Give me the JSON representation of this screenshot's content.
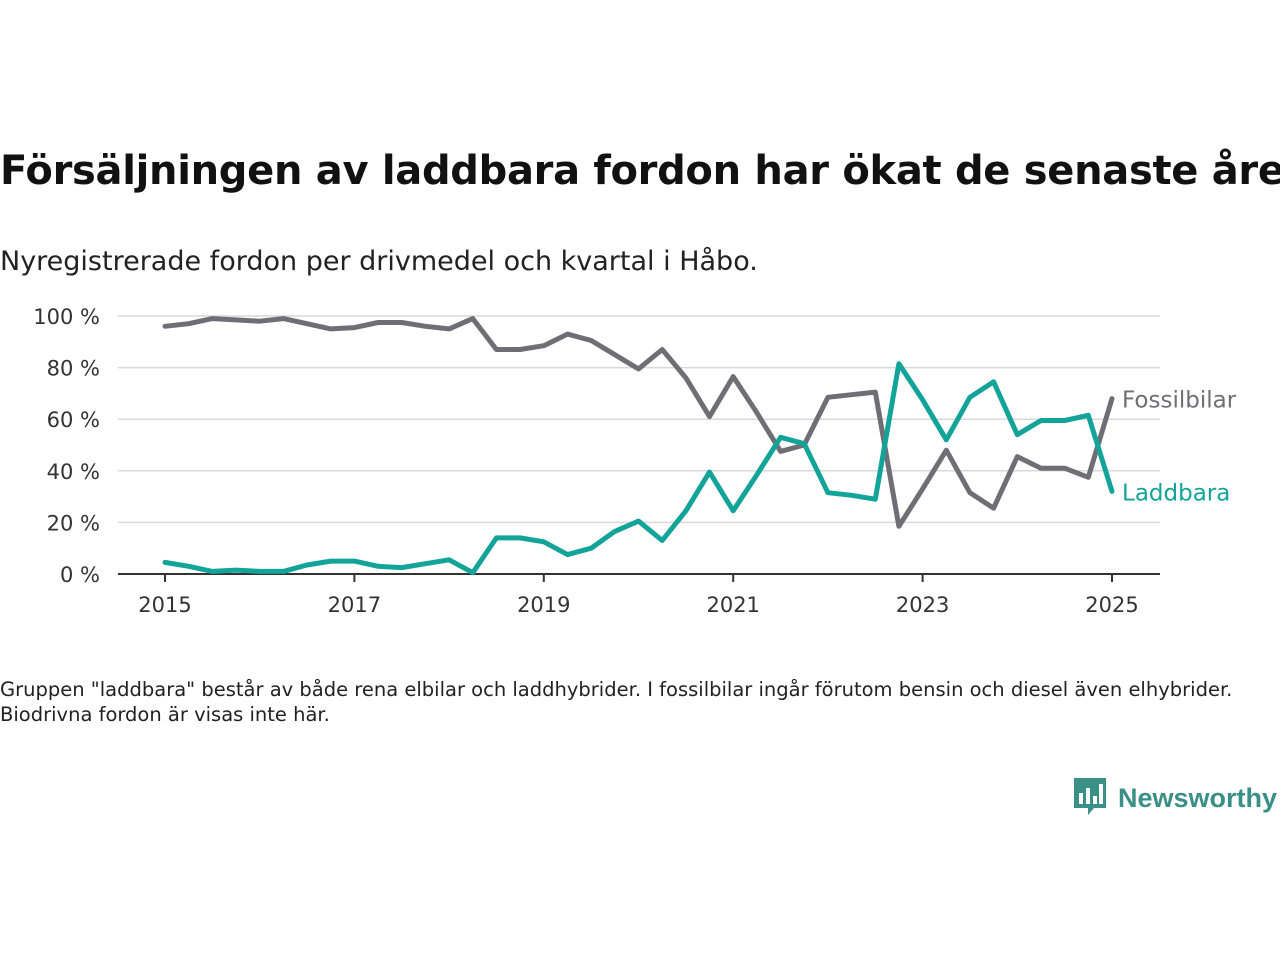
{
  "title": "Försäljningen av laddbara fordon har ökat de senaste åren",
  "subtitle": "Nyregistrerade fordon per drivmedel och kvartal i Håbo.",
  "note": "Gruppen \"laddbara\" består av både rena elbilar och laddhybrider. I fossilbilar ingår förutom bensin och diesel även elhybrider. Biodrivna fordon är visas inte här.",
  "brand": {
    "name": "Newsworthy",
    "icon": "newsworthy-logo-icon",
    "color": "#3a8f86"
  },
  "chart_data": {
    "type": "line",
    "xlabel": "",
    "ylabel": "",
    "ylim": [
      0,
      100
    ],
    "xlim": [
      2014.75,
      2025.25
    ],
    "grid": true,
    "y_ticks": [
      0,
      20,
      40,
      60,
      80,
      100
    ],
    "y_tick_labels": [
      "0 %",
      "20 %",
      "40 %",
      "60 %",
      "80 %",
      "100 %"
    ],
    "x_ticks": [
      2015,
      2017,
      2019,
      2021,
      2023,
      2025
    ],
    "x_tick_labels": [
      "2015",
      "2017",
      "2019",
      "2021",
      "2023",
      "2025"
    ],
    "x": [
      2015,
      2015.25,
      2015.5,
      2015.75,
      2016,
      2016.25,
      2016.5,
      2016.75,
      2017,
      2017.25,
      2017.5,
      2017.75,
      2018,
      2018.25,
      2018.5,
      2018.75,
      2019,
      2019.25,
      2019.5,
      2019.75,
      2020,
      2020.25,
      2020.5,
      2020.75,
      2021,
      2021.25,
      2021.5,
      2021.75,
      2022,
      2022.25,
      2022.5,
      2022.75,
      2023,
      2023.25,
      2023.5,
      2023.75,
      2024,
      2024.25,
      2024.5,
      2024.75,
      2025
    ],
    "series": [
      {
        "name": "Fossilbilar",
        "color": "#6f6e75",
        "values": [
          96,
          97,
          99,
          98.5,
          98,
          99,
          97,
          95,
          95.5,
          97.5,
          97.5,
          96,
          95,
          99,
          87,
          87,
          88.5,
          93,
          90.5,
          85,
          79.5,
          87,
          76,
          61,
          76.5,
          62.5,
          47.5,
          50,
          68.5,
          69.5,
          70.5,
          18.5,
          33,
          48,
          31.5,
          25.5,
          45.5,
          41,
          41,
          37.5,
          68
        ]
      },
      {
        "name": "Laddbara",
        "color": "#12a399",
        "values": [
          4.5,
          3,
          1,
          1.5,
          1,
          1,
          3.5,
          5,
          5,
          3,
          2.5,
          4,
          5.5,
          0.5,
          14,
          14,
          12.5,
          7.5,
          10,
          16.5,
          20.5,
          13,
          24.5,
          39.5,
          24.5,
          38.5,
          53,
          50.5,
          31.5,
          30.5,
          29,
          81.5,
          67.5,
          52,
          68.5,
          74.5,
          54,
          59.5,
          59.5,
          61.5,
          32
        ]
      }
    ]
  }
}
